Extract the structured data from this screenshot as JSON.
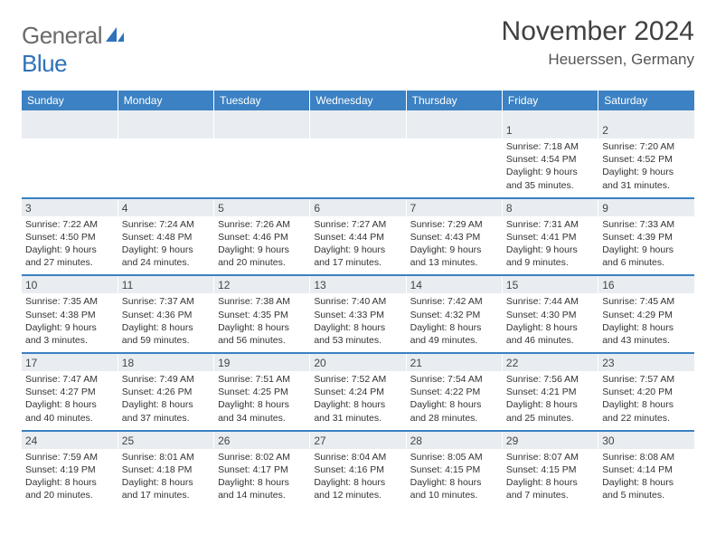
{
  "brand": {
    "general": "General",
    "blue": "Blue",
    "sail_color": "#2f72b9"
  },
  "title": "November 2024",
  "location": "Heuerssen, Germany",
  "header_bg": "#3b81c3",
  "daynum_bg": "#e9edf1",
  "weekdays": [
    "Sunday",
    "Monday",
    "Tuesday",
    "Wednesday",
    "Thursday",
    "Friday",
    "Saturday"
  ],
  "weeks": [
    [
      null,
      null,
      null,
      null,
      null,
      {
        "n": "1",
        "sr": "7:18 AM",
        "ss": "4:54 PM",
        "dl": "9 hours and 35 minutes."
      },
      {
        "n": "2",
        "sr": "7:20 AM",
        "ss": "4:52 PM",
        "dl": "9 hours and 31 minutes."
      }
    ],
    [
      {
        "n": "3",
        "sr": "7:22 AM",
        "ss": "4:50 PM",
        "dl": "9 hours and 27 minutes."
      },
      {
        "n": "4",
        "sr": "7:24 AM",
        "ss": "4:48 PM",
        "dl": "9 hours and 24 minutes."
      },
      {
        "n": "5",
        "sr": "7:26 AM",
        "ss": "4:46 PM",
        "dl": "9 hours and 20 minutes."
      },
      {
        "n": "6",
        "sr": "7:27 AM",
        "ss": "4:44 PM",
        "dl": "9 hours and 17 minutes."
      },
      {
        "n": "7",
        "sr": "7:29 AM",
        "ss": "4:43 PM",
        "dl": "9 hours and 13 minutes."
      },
      {
        "n": "8",
        "sr": "7:31 AM",
        "ss": "4:41 PM",
        "dl": "9 hours and 9 minutes."
      },
      {
        "n": "9",
        "sr": "7:33 AM",
        "ss": "4:39 PM",
        "dl": "9 hours and 6 minutes."
      }
    ],
    [
      {
        "n": "10",
        "sr": "7:35 AM",
        "ss": "4:38 PM",
        "dl": "9 hours and 3 minutes."
      },
      {
        "n": "11",
        "sr": "7:37 AM",
        "ss": "4:36 PM",
        "dl": "8 hours and 59 minutes."
      },
      {
        "n": "12",
        "sr": "7:38 AM",
        "ss": "4:35 PM",
        "dl": "8 hours and 56 minutes."
      },
      {
        "n": "13",
        "sr": "7:40 AM",
        "ss": "4:33 PM",
        "dl": "8 hours and 53 minutes."
      },
      {
        "n": "14",
        "sr": "7:42 AM",
        "ss": "4:32 PM",
        "dl": "8 hours and 49 minutes."
      },
      {
        "n": "15",
        "sr": "7:44 AM",
        "ss": "4:30 PM",
        "dl": "8 hours and 46 minutes."
      },
      {
        "n": "16",
        "sr": "7:45 AM",
        "ss": "4:29 PM",
        "dl": "8 hours and 43 minutes."
      }
    ],
    [
      {
        "n": "17",
        "sr": "7:47 AM",
        "ss": "4:27 PM",
        "dl": "8 hours and 40 minutes."
      },
      {
        "n": "18",
        "sr": "7:49 AM",
        "ss": "4:26 PM",
        "dl": "8 hours and 37 minutes."
      },
      {
        "n": "19",
        "sr": "7:51 AM",
        "ss": "4:25 PM",
        "dl": "8 hours and 34 minutes."
      },
      {
        "n": "20",
        "sr": "7:52 AM",
        "ss": "4:24 PM",
        "dl": "8 hours and 31 minutes."
      },
      {
        "n": "21",
        "sr": "7:54 AM",
        "ss": "4:22 PM",
        "dl": "8 hours and 28 minutes."
      },
      {
        "n": "22",
        "sr": "7:56 AM",
        "ss": "4:21 PM",
        "dl": "8 hours and 25 minutes."
      },
      {
        "n": "23",
        "sr": "7:57 AM",
        "ss": "4:20 PM",
        "dl": "8 hours and 22 minutes."
      }
    ],
    [
      {
        "n": "24",
        "sr": "7:59 AM",
        "ss": "4:19 PM",
        "dl": "8 hours and 20 minutes."
      },
      {
        "n": "25",
        "sr": "8:01 AM",
        "ss": "4:18 PM",
        "dl": "8 hours and 17 minutes."
      },
      {
        "n": "26",
        "sr": "8:02 AM",
        "ss": "4:17 PM",
        "dl": "8 hours and 14 minutes."
      },
      {
        "n": "27",
        "sr": "8:04 AM",
        "ss": "4:16 PM",
        "dl": "8 hours and 12 minutes."
      },
      {
        "n": "28",
        "sr": "8:05 AM",
        "ss": "4:15 PM",
        "dl": "8 hours and 10 minutes."
      },
      {
        "n": "29",
        "sr": "8:07 AM",
        "ss": "4:15 PM",
        "dl": "8 hours and 7 minutes."
      },
      {
        "n": "30",
        "sr": "8:08 AM",
        "ss": "4:14 PM",
        "dl": "8 hours and 5 minutes."
      }
    ]
  ],
  "labels": {
    "sunrise": "Sunrise: ",
    "sunset": "Sunset: ",
    "daylight": "Daylight: "
  }
}
